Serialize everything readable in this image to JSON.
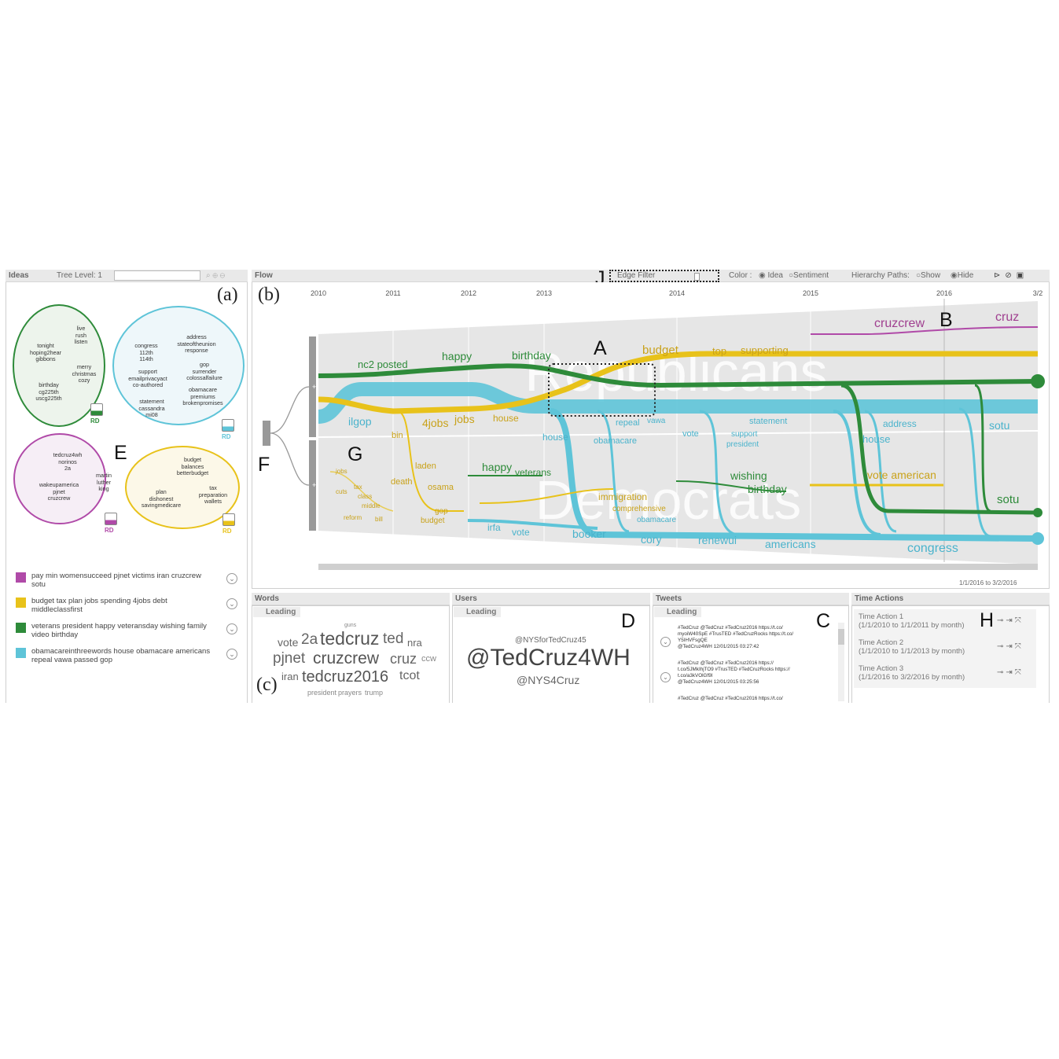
{
  "ideas": {
    "title": "Ideas",
    "tree_level": "Tree Level: 1"
  },
  "flow": {
    "title": "Flow",
    "edge_filter": "Edge Filter",
    "color_label": "Color :",
    "color_idea": "Idea",
    "color_sentiment": "Sentiment",
    "hier_label": "Hierarchy Paths:",
    "hier_show": "Show",
    "hier_hide": "Hide",
    "years": [
      "2010",
      "2011",
      "2012",
      "2013",
      "2014",
      "2015",
      "2016",
      "3/2"
    ],
    "parties": {
      "top": "Republicans",
      "bottom": "Democrats"
    },
    "date_range": "1/1/2016 to 3/2/2016"
  },
  "labels": {
    "a": "(a)",
    "b": "(b)",
    "c": "(c)",
    "A": "A",
    "B": "B",
    "C": "C",
    "D": "D",
    "E": "E",
    "F": "F",
    "G": "G",
    "H": "H",
    "J": "J"
  },
  "clusters": {
    "green": {
      "words": [
        [
          "live",
          "rush",
          "listen"
        ],
        [
          "tonight",
          "hoping2hear",
          "gibbons"
        ],
        [
          "merry",
          "christmas",
          "cozy"
        ],
        [
          "birthday",
          "cg225th",
          "uscg225th"
        ]
      ]
    },
    "blue": {
      "words": [
        [
          "address",
          "stateoftheunion",
          "response"
        ],
        [
          "congress",
          "112th",
          "114th"
        ],
        [
          "gop",
          "surrender",
          "colossalfailure"
        ],
        [
          "support",
          "emailprivacyact",
          "co-authored"
        ],
        [
          "obamacare",
          "premiums",
          "brokenpromises"
        ],
        [
          "statement",
          "cassandra",
          "mi08"
        ]
      ]
    },
    "purple": {
      "words": [
        [
          "tedcruz4wh",
          "norinos",
          "2a"
        ],
        [
          "wakeupamerica",
          "pjnet",
          "cruzcrew"
        ],
        [
          "martin",
          "luther",
          "king"
        ]
      ]
    },
    "yellow": {
      "words": [
        [
          "budget",
          "balances",
          "betterbudget"
        ],
        [
          "plan",
          "dishonest",
          "savingmedicare"
        ],
        [
          "tax",
          "preparation",
          "wallets"
        ]
      ]
    },
    "rd": "RD"
  },
  "legend": [
    {
      "color": "#b04aa8",
      "text": "pay min womensucceed pjnet victims iran cruzcrew sotu"
    },
    {
      "color": "#e8c21a",
      "text": "budget tax plan jobs spending 4jobs debt middleclassfirst"
    },
    {
      "color": "#2e8b3a",
      "text": "veterans president happy veteransday wishing family video birthday"
    },
    {
      "color": "#5ec4d8",
      "text": "obamacareinthreewords house obamacare americans repeal vawa passed gop"
    }
  ],
  "flow_words": [
    {
      "t": "nc2 posted",
      "c": "#2e8b3a"
    },
    {
      "t": "happy",
      "c": "#2e8b3a"
    },
    {
      "t": "birthday",
      "c": "#2e8b3a"
    },
    {
      "t": "budget",
      "c": "#c9a21a"
    },
    {
      "t": "top",
      "c": "#c9a21a"
    },
    {
      "t": "supporting",
      "c": "#c9a21a"
    },
    {
      "t": "cruzcrew",
      "c": "#a04090"
    },
    {
      "t": "cruz",
      "c": "#a04090"
    },
    {
      "t": "ilgop",
      "c": "#4ab3cc"
    },
    {
      "t": "bin",
      "c": "#c9a21a"
    },
    {
      "t": "4jobs",
      "c": "#c9a21a"
    },
    {
      "t": "jobs",
      "c": "#c9a21a"
    },
    {
      "t": "house",
      "c": "#c9a21a"
    },
    {
      "t": "house",
      "c": "#4ab3cc"
    },
    {
      "t": "obamacare",
      "c": "#4ab3cc"
    },
    {
      "t": "repeal",
      "c": "#4ab3cc"
    },
    {
      "t": "vawa",
      "c": "#4ab3cc"
    },
    {
      "t": "vote",
      "c": "#4ab3cc"
    },
    {
      "t": "statement",
      "c": "#4ab3cc"
    },
    {
      "t": "support",
      "c": "#4ab3cc"
    },
    {
      "t": "president",
      "c": "#4ab3cc"
    },
    {
      "t": "address",
      "c": "#4ab3cc"
    },
    {
      "t": "house",
      "c": "#4ab3cc"
    },
    {
      "t": "sotu",
      "c": "#4ab3cc"
    },
    {
      "t": "jobs",
      "c": "#c9a21a"
    },
    {
      "t": "tax",
      "c": "#c9a21a"
    },
    {
      "t": "cuts",
      "c": "#c9a21a"
    },
    {
      "t": "class",
      "c": "#c9a21a"
    },
    {
      "t": "middle",
      "c": "#c9a21a"
    },
    {
      "t": "reform",
      "c": "#c9a21a"
    },
    {
      "t": "bill",
      "c": "#c9a21a"
    },
    {
      "t": "laden",
      "c": "#c9a21a"
    },
    {
      "t": "death",
      "c": "#c9a21a"
    },
    {
      "t": "osama",
      "c": "#c9a21a"
    },
    {
      "t": "gop",
      "c": "#c9a21a"
    },
    {
      "t": "budget",
      "c": "#c9a21a"
    },
    {
      "t": "happy",
      "c": "#2e8b3a"
    },
    {
      "t": "veterans",
      "c": "#2e8b3a"
    },
    {
      "t": "immigration",
      "c": "#c9a21a"
    },
    {
      "t": "comprehensive",
      "c": "#c9a21a"
    },
    {
      "t": "obamacare",
      "c": "#4ab3cc"
    },
    {
      "t": "wishing",
      "c": "#2e8b3a"
    },
    {
      "t": "birthday",
      "c": "#2e8b3a"
    },
    {
      "t": "vote american",
      "c": "#c9a21a"
    },
    {
      "t": "sotu",
      "c": "#2e8b3a"
    },
    {
      "t": "irfa",
      "c": "#4ab3cc"
    },
    {
      "t": "vote",
      "c": "#4ab3cc"
    },
    {
      "t": "booker",
      "c": "#4ab3cc"
    },
    {
      "t": "cory",
      "c": "#4ab3cc"
    },
    {
      "t": "renewui",
      "c": "#4ab3cc"
    },
    {
      "t": "americans",
      "c": "#4ab3cc"
    },
    {
      "t": "congress",
      "c": "#4ab3cc"
    }
  ],
  "words": {
    "title": "Words",
    "leading": "Leading",
    "cloud": [
      "guns",
      "vote",
      "2a",
      "tedcruz",
      "ted",
      "nra",
      "pjnet",
      "cruzcrew",
      "cruz",
      "ccw",
      "iran",
      "tedcruz2016",
      "tcot",
      "president",
      "prayers",
      "trump"
    ]
  },
  "users": {
    "title": "Users",
    "leading": "Leading",
    "top": "@NYSforTedCruz45",
    "main": "@TedCruz4WH",
    "bottom": "@NYS4Cruz"
  },
  "tweets": {
    "title": "Tweets",
    "leading": "Leading",
    "items": [
      [
        "#TedCruz @TedCruz #TedCruz2016 https://t.co/",
        "myoiW40SpE #TrusTED #TedCruzRocks https://t.co/",
        "Y5IHVFsgQE",
        "@TedCruz4WH 12/01/2015 03:27:42"
      ],
      [
        "#TedCruz @TedCruz #TedCruz2016 https://",
        "t.co/5JMkIhjTO9 #TrusTED #TedCruzRocks https://",
        "t.co/a3kVOlGf9I",
        "@TedCruz4WH 12/01/2015 03:25:56"
      ],
      [
        "#TedCruz @TedCruz #TedCruz2016 https://t.co/",
        "",
        "",
        ""
      ]
    ]
  },
  "time_actions": {
    "title": "Time Actions",
    "items": [
      {
        "name": "Time Action 1",
        "range": "(1/1/2010 to 1/1/2011 by month)"
      },
      {
        "name": "Time Action 2",
        "range": "(1/1/2010 to 1/1/2013 by month)"
      },
      {
        "name": "Time Action 3",
        "range": "(1/1/2016 to 3/2/2016 by month)"
      }
    ]
  }
}
